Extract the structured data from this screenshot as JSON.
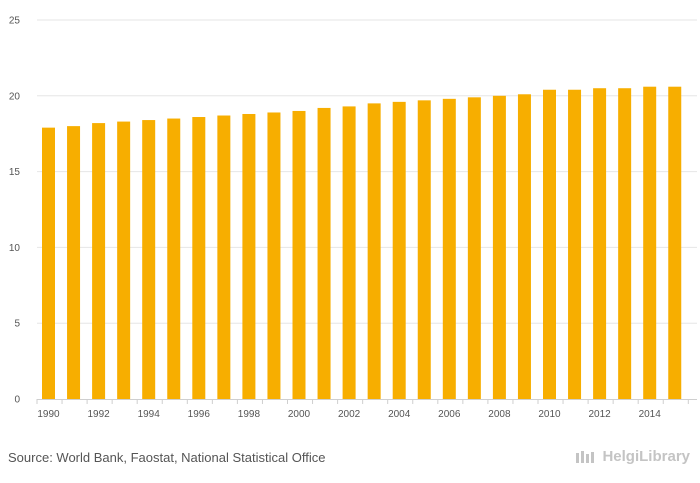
{
  "chart_data": {
    "type": "bar",
    "categories": [
      "1990",
      "1991",
      "1992",
      "1993",
      "1994",
      "1995",
      "1996",
      "1997",
      "1998",
      "1999",
      "2000",
      "2001",
      "2002",
      "2003",
      "2004",
      "2005",
      "2006",
      "2007",
      "2008",
      "2009",
      "2010",
      "2011",
      "2012",
      "2013",
      "2014",
      "2015"
    ],
    "values": [
      17.9,
      18.0,
      18.2,
      18.3,
      18.4,
      18.5,
      18.6,
      18.7,
      18.8,
      18.9,
      19.0,
      19.2,
      19.3,
      19.5,
      19.6,
      19.7,
      19.8,
      19.9,
      20.0,
      20.1,
      20.4,
      20.4,
      20.5,
      20.5,
      20.6,
      20.6
    ],
    "x_tick_labels": [
      "1990",
      "1992",
      "1994",
      "1996",
      "1998",
      "2000",
      "2002",
      "2004",
      "2006",
      "2008",
      "2010",
      "2012",
      "2014"
    ],
    "y_ticks": [
      0,
      5,
      10,
      15,
      20,
      25
    ],
    "ylim": [
      0,
      25
    ],
    "title": "",
    "xlabel": "",
    "ylabel": "",
    "grid": true,
    "bar_color": "#F7AE00",
    "grid_color": "#e6e6e6"
  },
  "footer": {
    "source": "Source: World Bank, Faostat, National Statistical Office",
    "brand": "HelgiLibrary"
  }
}
